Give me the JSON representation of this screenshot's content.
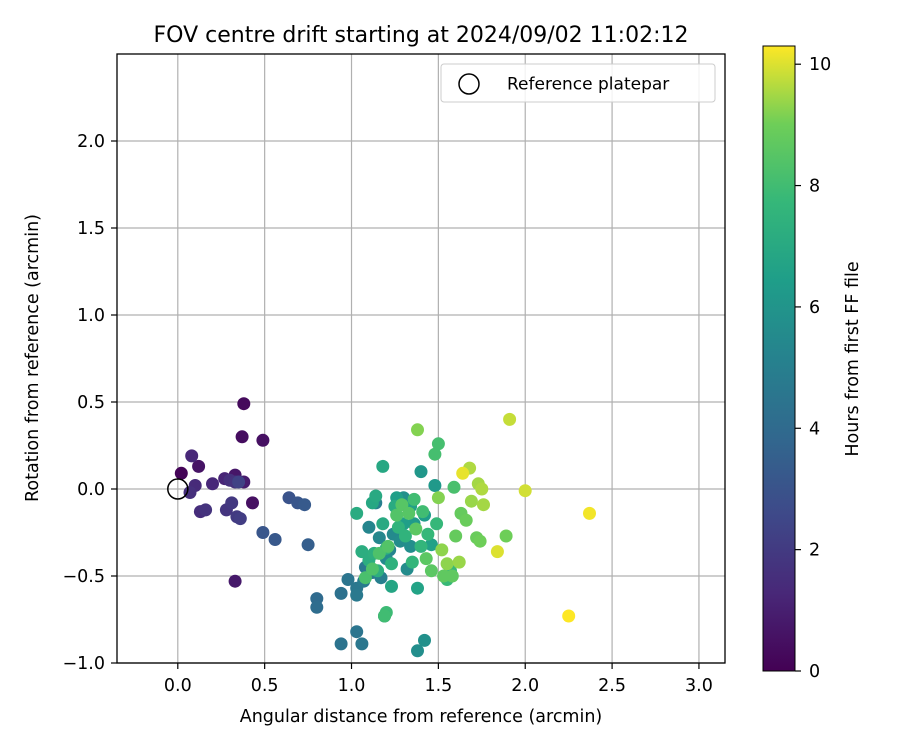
{
  "chart_data": {
    "type": "scatter",
    "title": "FOV centre drift starting at 2024/09/02 11:02:12",
    "xlabel": "Angular distance from reference (arcmin)",
    "ylabel": "Rotation from reference (arcmin)",
    "xlim": [
      -0.35,
      3.15
    ],
    "ylim": [
      -1.0,
      2.5
    ],
    "xticks": [
      0.0,
      0.5,
      1.0,
      1.5,
      2.0,
      2.5,
      3.0
    ],
    "xtick_labels": [
      "0.0",
      "0.5",
      "1.0",
      "1.5",
      "2.0",
      "2.5",
      "3.0"
    ],
    "yticks": [
      -1.0,
      -0.5,
      0.0,
      0.5,
      1.0,
      1.5,
      2.0
    ],
    "ytick_labels": [
      "−1.0",
      "−0.5",
      "0.0",
      "0.5",
      "1.0",
      "1.5",
      "2.0"
    ],
    "grid": true,
    "legend_position": "top-right",
    "legend": [
      {
        "label": "Reference platepar",
        "marker": "open-circle"
      }
    ],
    "reference_point": {
      "x": 0.0,
      "y": 0.0
    },
    "colorbar": {
      "label": "Hours from first FF file",
      "min": 0,
      "max": 10.3,
      "ticks": [
        0,
        2,
        4,
        6,
        8,
        10
      ],
      "tick_labels": [
        "0",
        "2",
        "4",
        "6",
        "8",
        "10"
      ],
      "colormap": "viridis"
    },
    "series": [
      {
        "points": [
          [
            0.02,
            0.09,
            0.1
          ],
          [
            0.12,
            0.13,
            0.6
          ],
          [
            0.38,
            0.49,
            0.3
          ],
          [
            0.37,
            0.3,
            0.4
          ],
          [
            0.49,
            0.28,
            0.5
          ],
          [
            0.33,
            0.08,
            0.7
          ],
          [
            0.38,
            0.04,
            0.9
          ],
          [
            0.43,
            -0.08,
            0.5
          ],
          [
            0.33,
            -0.53,
            0.8
          ],
          [
            0.08,
            0.19,
            1.3
          ],
          [
            0.1,
            0.02,
            1.4
          ],
          [
            0.2,
            0.03,
            1.3
          ],
          [
            0.27,
            0.06,
            1.2
          ],
          [
            0.3,
            0.05,
            1.6
          ],
          [
            0.33,
            0.04,
            1.7
          ],
          [
            0.07,
            -0.02,
            1.6
          ],
          [
            0.13,
            -0.13,
            1.5
          ],
          [
            0.16,
            -0.12,
            1.7
          ],
          [
            0.28,
            -0.12,
            1.8
          ],
          [
            0.31,
            -0.08,
            1.9
          ],
          [
            0.34,
            -0.16,
            2.0
          ],
          [
            0.36,
            -0.17,
            2.1
          ],
          [
            0.35,
            0.04,
            2.3
          ],
          [
            0.49,
            -0.25,
            3.1
          ],
          [
            0.56,
            -0.29,
            3.2
          ],
          [
            0.64,
            -0.05,
            3.0
          ],
          [
            0.69,
            -0.08,
            3.1
          ],
          [
            0.73,
            -0.09,
            3.3
          ],
          [
            0.75,
            -0.32,
            3.5
          ],
          [
            0.8,
            -0.63,
            4.0
          ],
          [
            0.8,
            -0.68,
            4.1
          ],
          [
            0.94,
            -0.6,
            4.3
          ],
          [
            0.94,
            -0.89,
            4.4
          ],
          [
            0.98,
            -0.52,
            4.5
          ],
          [
            1.03,
            -0.57,
            4.6
          ],
          [
            1.03,
            -0.61,
            4.7
          ],
          [
            1.03,
            -0.82,
            4.5
          ],
          [
            1.06,
            -0.89,
            4.6
          ],
          [
            1.08,
            -0.45,
            4.7
          ],
          [
            1.07,
            -0.53,
            4.8
          ],
          [
            1.12,
            -0.48,
            4.9
          ],
          [
            1.17,
            -0.51,
            5.0
          ],
          [
            1.19,
            -0.73,
            5.0
          ],
          [
            1.14,
            -0.08,
            5.0
          ],
          [
            1.22,
            -0.35,
            5.2
          ],
          [
            1.1,
            -0.22,
            5.3
          ],
          [
            1.16,
            -0.28,
            5.4
          ],
          [
            1.2,
            -0.4,
            5.5
          ],
          [
            1.24,
            -0.26,
            5.5
          ],
          [
            1.28,
            -0.3,
            5.6
          ],
          [
            1.32,
            -0.46,
            5.6
          ],
          [
            1.34,
            -0.33,
            5.7
          ],
          [
            1.38,
            -0.93,
            5.7
          ],
          [
            1.42,
            -0.87,
            5.8
          ],
          [
            1.3,
            -0.05,
            5.8
          ],
          [
            1.4,
            0.1,
            6.1
          ],
          [
            1.48,
            0.02,
            6.2
          ],
          [
            1.36,
            -0.2,
            6.3
          ],
          [
            1.42,
            -0.15,
            6.4
          ],
          [
            1.26,
            -0.05,
            6.5
          ],
          [
            1.3,
            -0.2,
            6.5
          ],
          [
            1.34,
            -0.1,
            6.6
          ],
          [
            1.46,
            -0.32,
            6.6
          ],
          [
            1.38,
            -0.57,
            6.7
          ],
          [
            1.23,
            -0.56,
            6.8
          ],
          [
            1.18,
            0.13,
            6.9
          ],
          [
            1.12,
            -0.08,
            6.9
          ],
          [
            1.14,
            -0.04,
            7.0
          ],
          [
            1.18,
            -0.2,
            7.0
          ],
          [
            1.25,
            -0.1,
            7.1
          ],
          [
            1.03,
            -0.14,
            7.1
          ],
          [
            1.06,
            -0.36,
            7.2
          ],
          [
            1.1,
            -0.41,
            7.2
          ],
          [
            1.13,
            -0.37,
            7.3
          ],
          [
            1.15,
            -0.47,
            7.3
          ],
          [
            1.2,
            -0.34,
            7.4
          ],
          [
            1.23,
            -0.43,
            7.4
          ],
          [
            1.27,
            -0.22,
            7.5
          ],
          [
            1.31,
            -0.27,
            7.5
          ],
          [
            1.35,
            -0.42,
            7.6
          ],
          [
            1.4,
            -0.33,
            7.6
          ],
          [
            1.44,
            -0.26,
            7.7
          ],
          [
            1.49,
            -0.2,
            7.7
          ],
          [
            1.55,
            -0.52,
            7.8
          ],
          [
            1.57,
            -0.47,
            7.8
          ],
          [
            1.2,
            -0.71,
            7.9
          ],
          [
            1.19,
            -0.73,
            8.0
          ],
          [
            1.36,
            -0.06,
            8.0
          ],
          [
            1.41,
            -0.13,
            8.0
          ],
          [
            1.5,
            0.26,
            8.1
          ],
          [
            1.48,
            0.2,
            8.1
          ],
          [
            1.59,
            0.01,
            8.2
          ],
          [
            1.08,
            -0.51,
            8.2
          ],
          [
            1.12,
            -0.46,
            8.3
          ],
          [
            1.16,
            -0.37,
            8.3
          ],
          [
            1.21,
            -0.33,
            8.4
          ],
          [
            1.26,
            -0.15,
            8.4
          ],
          [
            1.29,
            -0.09,
            8.5
          ],
          [
            1.33,
            -0.14,
            8.5
          ],
          [
            1.37,
            -0.23,
            8.6
          ],
          [
            1.43,
            -0.4,
            8.6
          ],
          [
            1.46,
            -0.47,
            8.6
          ],
          [
            1.53,
            -0.5,
            8.7
          ],
          [
            1.58,
            -0.5,
            8.7
          ],
          [
            1.6,
            -0.27,
            8.8
          ],
          [
            1.63,
            -0.14,
            8.8
          ],
          [
            1.66,
            -0.18,
            8.9
          ],
          [
            1.72,
            -0.28,
            8.9
          ],
          [
            1.74,
            -0.3,
            9.0
          ],
          [
            1.89,
            -0.27,
            9.0
          ],
          [
            1.38,
            0.34,
            9.2
          ],
          [
            1.5,
            -0.05,
            9.2
          ],
          [
            1.52,
            -0.35,
            9.3
          ],
          [
            1.55,
            -0.43,
            9.3
          ],
          [
            1.62,
            -0.42,
            9.4
          ],
          [
            1.69,
            -0.07,
            9.4
          ],
          [
            1.73,
            0.03,
            9.5
          ],
          [
            1.76,
            -0.09,
            9.5
          ],
          [
            1.68,
            0.12,
            9.6
          ],
          [
            1.75,
            0.0,
            9.6
          ],
          [
            1.91,
            0.4,
            9.8
          ],
          [
            2.0,
            -0.01,
            9.9
          ],
          [
            1.84,
            -0.36,
            10.0
          ],
          [
            1.64,
            0.09,
            10.1
          ],
          [
            2.37,
            -0.14,
            10.2
          ],
          [
            2.25,
            -0.73,
            10.3
          ]
        ]
      }
    ]
  }
}
